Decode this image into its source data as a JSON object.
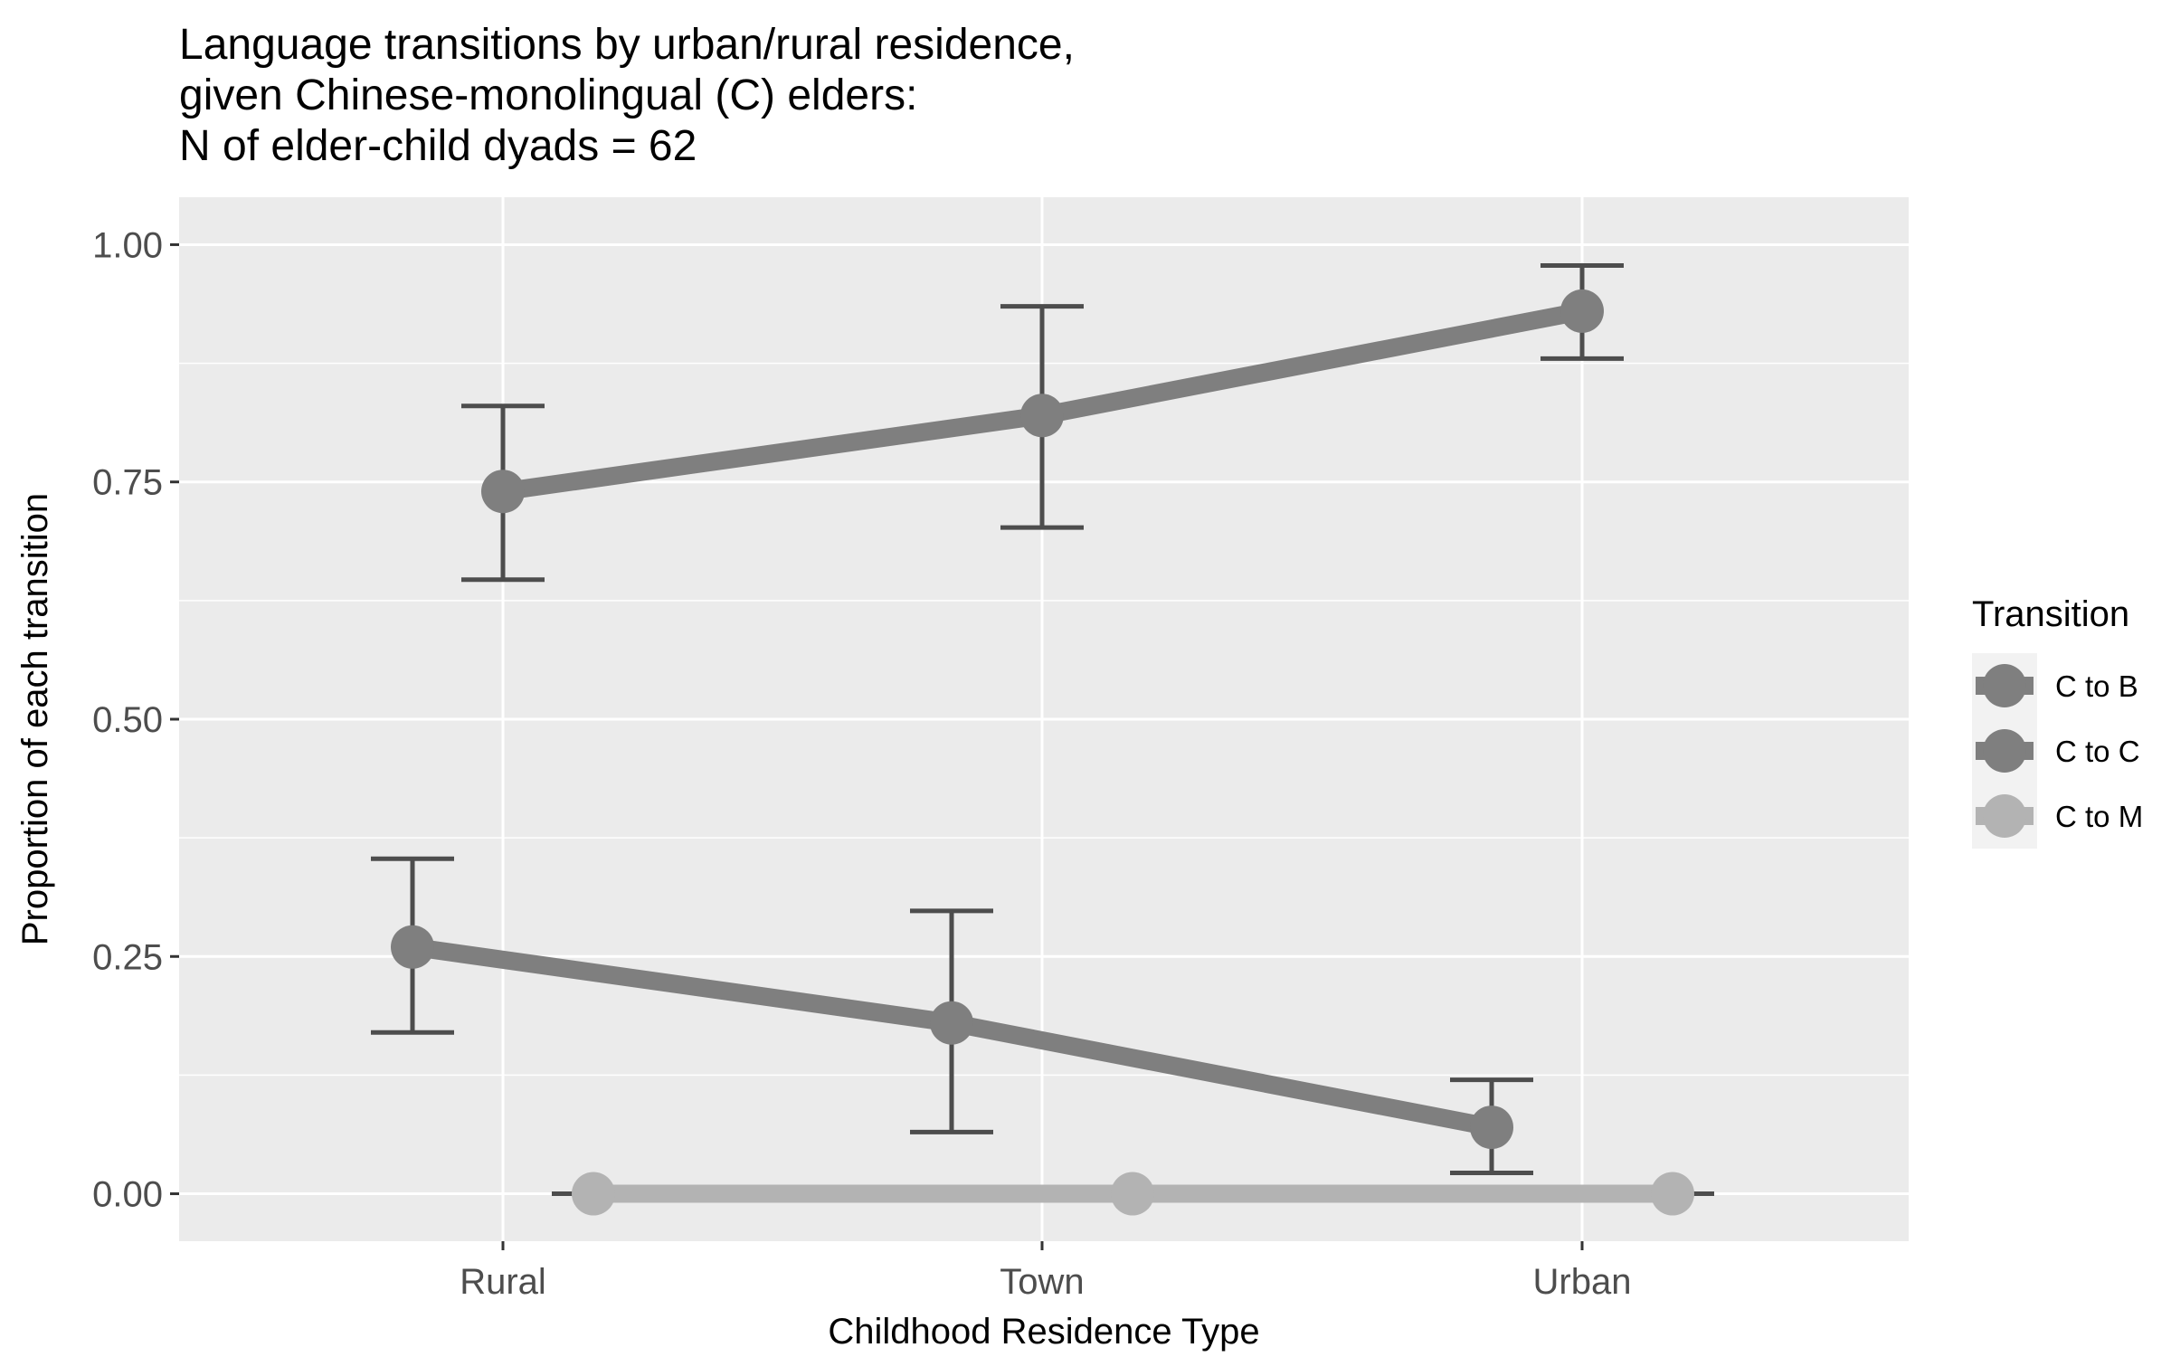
{
  "chart_data": {
    "type": "line",
    "title_lines": [
      "Language transitions by urban/rural residence,",
      "given Chinese-monolingual (C) elders:",
      "N of elder-child dyads = 62"
    ],
    "xlabel": "Childhood Residence Type",
    "ylabel": "Proportion of each transition",
    "categories": [
      "Rural",
      "Town",
      "Urban"
    ],
    "ylim": [
      -0.05,
      1.05
    ],
    "yticks": [
      0.0,
      0.25,
      0.5,
      0.75,
      1.0
    ],
    "ytick_labels": [
      "0.00",
      "0.25",
      "0.50",
      "0.75",
      "1.00"
    ],
    "grid": true,
    "legend": {
      "title": "Transition",
      "position": "right"
    },
    "series": [
      {
        "name": "C to B",
        "color": "#7f7f7f",
        "offset": -1,
        "values": [
          0.26,
          0.18,
          0.07
        ],
        "lower": [
          0.17,
          0.065,
          0.022
        ],
        "upper": [
          0.353,
          0.298,
          0.12
        ]
      },
      {
        "name": "C to C",
        "color": "#7f7f7f",
        "offset": 0,
        "values": [
          0.74,
          0.82,
          0.93
        ],
        "lower": [
          0.647,
          0.702,
          0.88
        ],
        "upper": [
          0.83,
          0.935,
          0.978
        ]
      },
      {
        "name": "C to M",
        "color": "#b3b3b3",
        "offset": 1,
        "values": [
          0.0,
          0.0,
          0.0
        ],
        "lower": [
          0.0,
          0.0,
          0.0
        ],
        "upper": [
          0.0,
          0.0,
          0.0
        ]
      }
    ]
  }
}
